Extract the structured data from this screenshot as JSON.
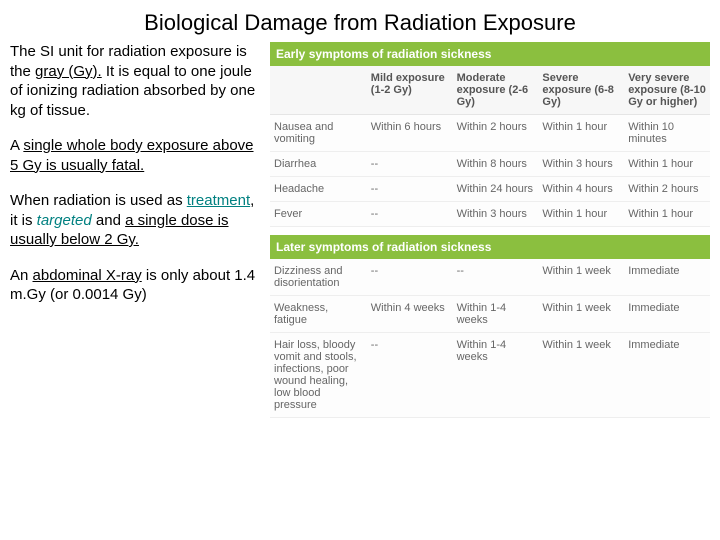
{
  "title": "Biological Damage from Radiation Exposure",
  "left": {
    "p1a": "The SI unit for radiation exposure is the ",
    "p1b": "gray (Gy).",
    "p1c": " It is equal to one joule of ionizing radiation absorbed by one kg of tissue.",
    "p2a": "A ",
    "p2b": "single whole body exposure above 5 Gy is usually fatal.",
    "p3a": "When radiation is used as ",
    "p3b": "treatment",
    "p3c": ", it is ",
    "p3d": "targeted",
    "p3e": " and ",
    "p3f": "a single dose is usually below 2 Gy.",
    "p4a": "An ",
    "p4b": "abdominal X-ray",
    "p4c": " is only about 1.4 m.Gy (or 0.0014 Gy)"
  },
  "table1": {
    "section": "Early symptoms of radiation sickness",
    "h0": "",
    "h1": "Mild exposure (1-2 Gy)",
    "h2": "Moderate exposure (2-6 Gy)",
    "h3": "Severe exposure (6-8 Gy)",
    "h4": "Very severe exposure (8-10 Gy or higher)",
    "r1c0": "Nausea and vomiting",
    "r1c1": "Within 6 hours",
    "r1c2": "Within 2 hours",
    "r1c3": "Within 1 hour",
    "r1c4": "Within 10 minutes",
    "r2c0": "Diarrhea",
    "r2c1": "--",
    "r2c2": "Within 8 hours",
    "r2c3": "Within 3 hours",
    "r2c4": "Within 1 hour",
    "r3c0": "Headache",
    "r3c1": "--",
    "r3c2": "Within 24 hours",
    "r3c3": "Within 4 hours",
    "r3c4": "Within 2 hours",
    "r4c0": "Fever",
    "r4c1": "--",
    "r4c2": "Within 3 hours",
    "r4c3": "Within 1 hour",
    "r4c4": "Within 1 hour"
  },
  "table2": {
    "section": "Later symptoms of radiation sickness",
    "r1c0": "Dizziness and disorientation",
    "r1c1": "--",
    "r1c2": "--",
    "r1c3": "Within 1 week",
    "r1c4": "Immediate",
    "r2c0": "Weakness, fatigue",
    "r2c1": "Within 4 weeks",
    "r2c2": "Within 1-4 weeks",
    "r2c3": "Within 1 week",
    "r2c4": "Immediate",
    "r3c0": "Hair loss, bloody vomit and stools, infections, poor wound healing, low blood pressure",
    "r3c1": "--",
    "r3c2": "Within 1-4 weeks",
    "r3c3": "Within 1 week",
    "r3c4": "Immediate"
  }
}
